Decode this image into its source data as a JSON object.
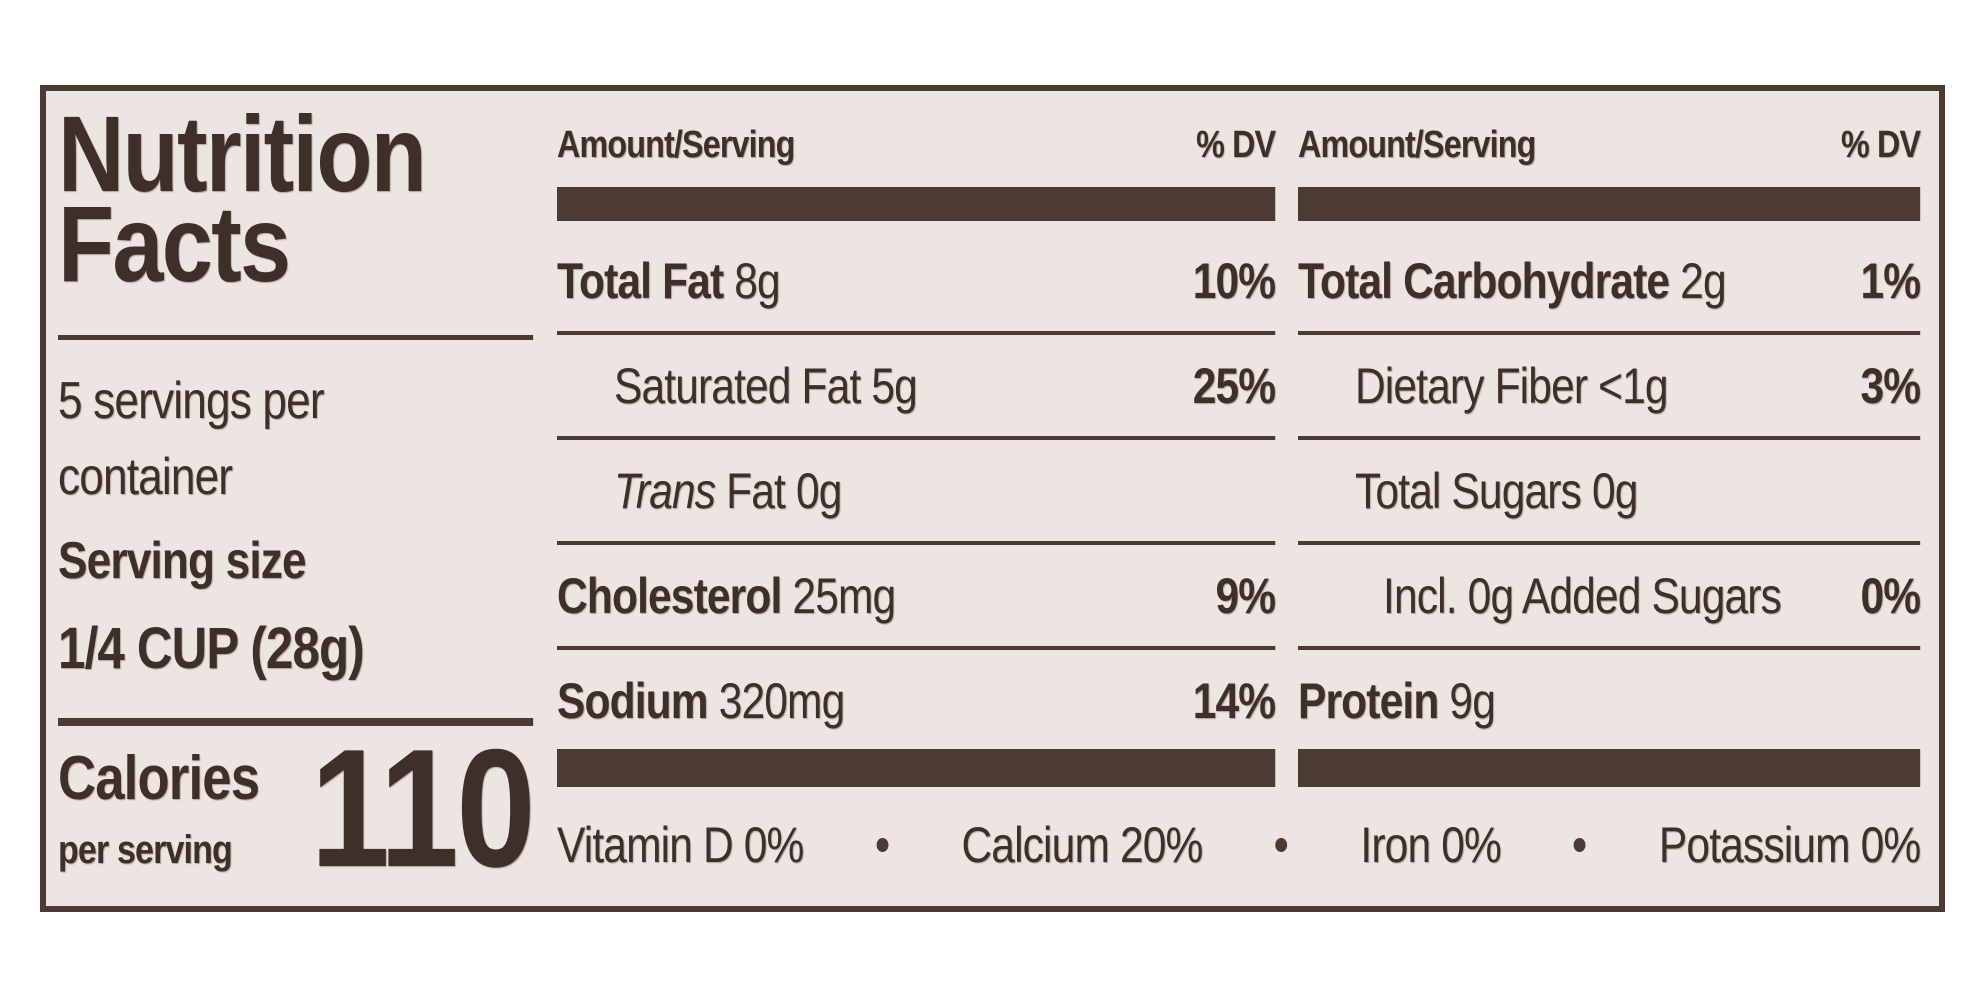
{
  "title": "Nutrition Facts",
  "servings": "5 servings per container",
  "serving_size_label": "Serving size",
  "serving_size": "1/4 CUP (28g)",
  "calories_label": "Calories",
  "calories_sub": "per serving",
  "calories": 110,
  "columns": [
    {
      "header": {
        "amount": "Amount/Serving",
        "dv": "% DV"
      },
      "rows": [
        {
          "name": "Total Fat",
          "amount": "8g",
          "dv": "10%",
          "bold": true,
          "level": 0
        },
        {
          "name": "Saturated Fat",
          "amount": "5g",
          "dv": "25%",
          "bold": false,
          "level": 1
        },
        {
          "italic_prefix": "Trans",
          "name": "Fat",
          "amount": "0g",
          "bold": false,
          "level": 1
        },
        {
          "name": "Cholesterol",
          "amount": "25mg",
          "dv": "9%",
          "bold": true,
          "level": 0
        },
        {
          "name": "Sodium",
          "amount": "320mg",
          "dv": "14%",
          "bold": true,
          "level": 0
        }
      ]
    },
    {
      "header": {
        "amount": "Amount/Serving",
        "dv": "% DV"
      },
      "rows": [
        {
          "name": "Total Carbohydrate",
          "amount": "2g",
          "dv": "1%",
          "bold": true,
          "level": 0
        },
        {
          "name": "Dietary Fiber",
          "amount": "<1g",
          "dv": "3%",
          "bold": false,
          "level": 1
        },
        {
          "name": "Total Sugars",
          "amount": "0g",
          "bold": false,
          "level": 1
        },
        {
          "name": "Incl. 0g Added Sugars",
          "dv": "0%",
          "bold": false,
          "level": 2
        },
        {
          "name": "Protein",
          "amount": "9g",
          "bold": true,
          "level": 0
        }
      ]
    }
  ],
  "vitamins": [
    {
      "name": "Vitamin D",
      "dv": "0%"
    },
    {
      "name": "Calcium",
      "dv": "20%"
    },
    {
      "name": "Iron",
      "dv": "0%"
    },
    {
      "name": "Potassium",
      "dv": "0%"
    }
  ]
}
